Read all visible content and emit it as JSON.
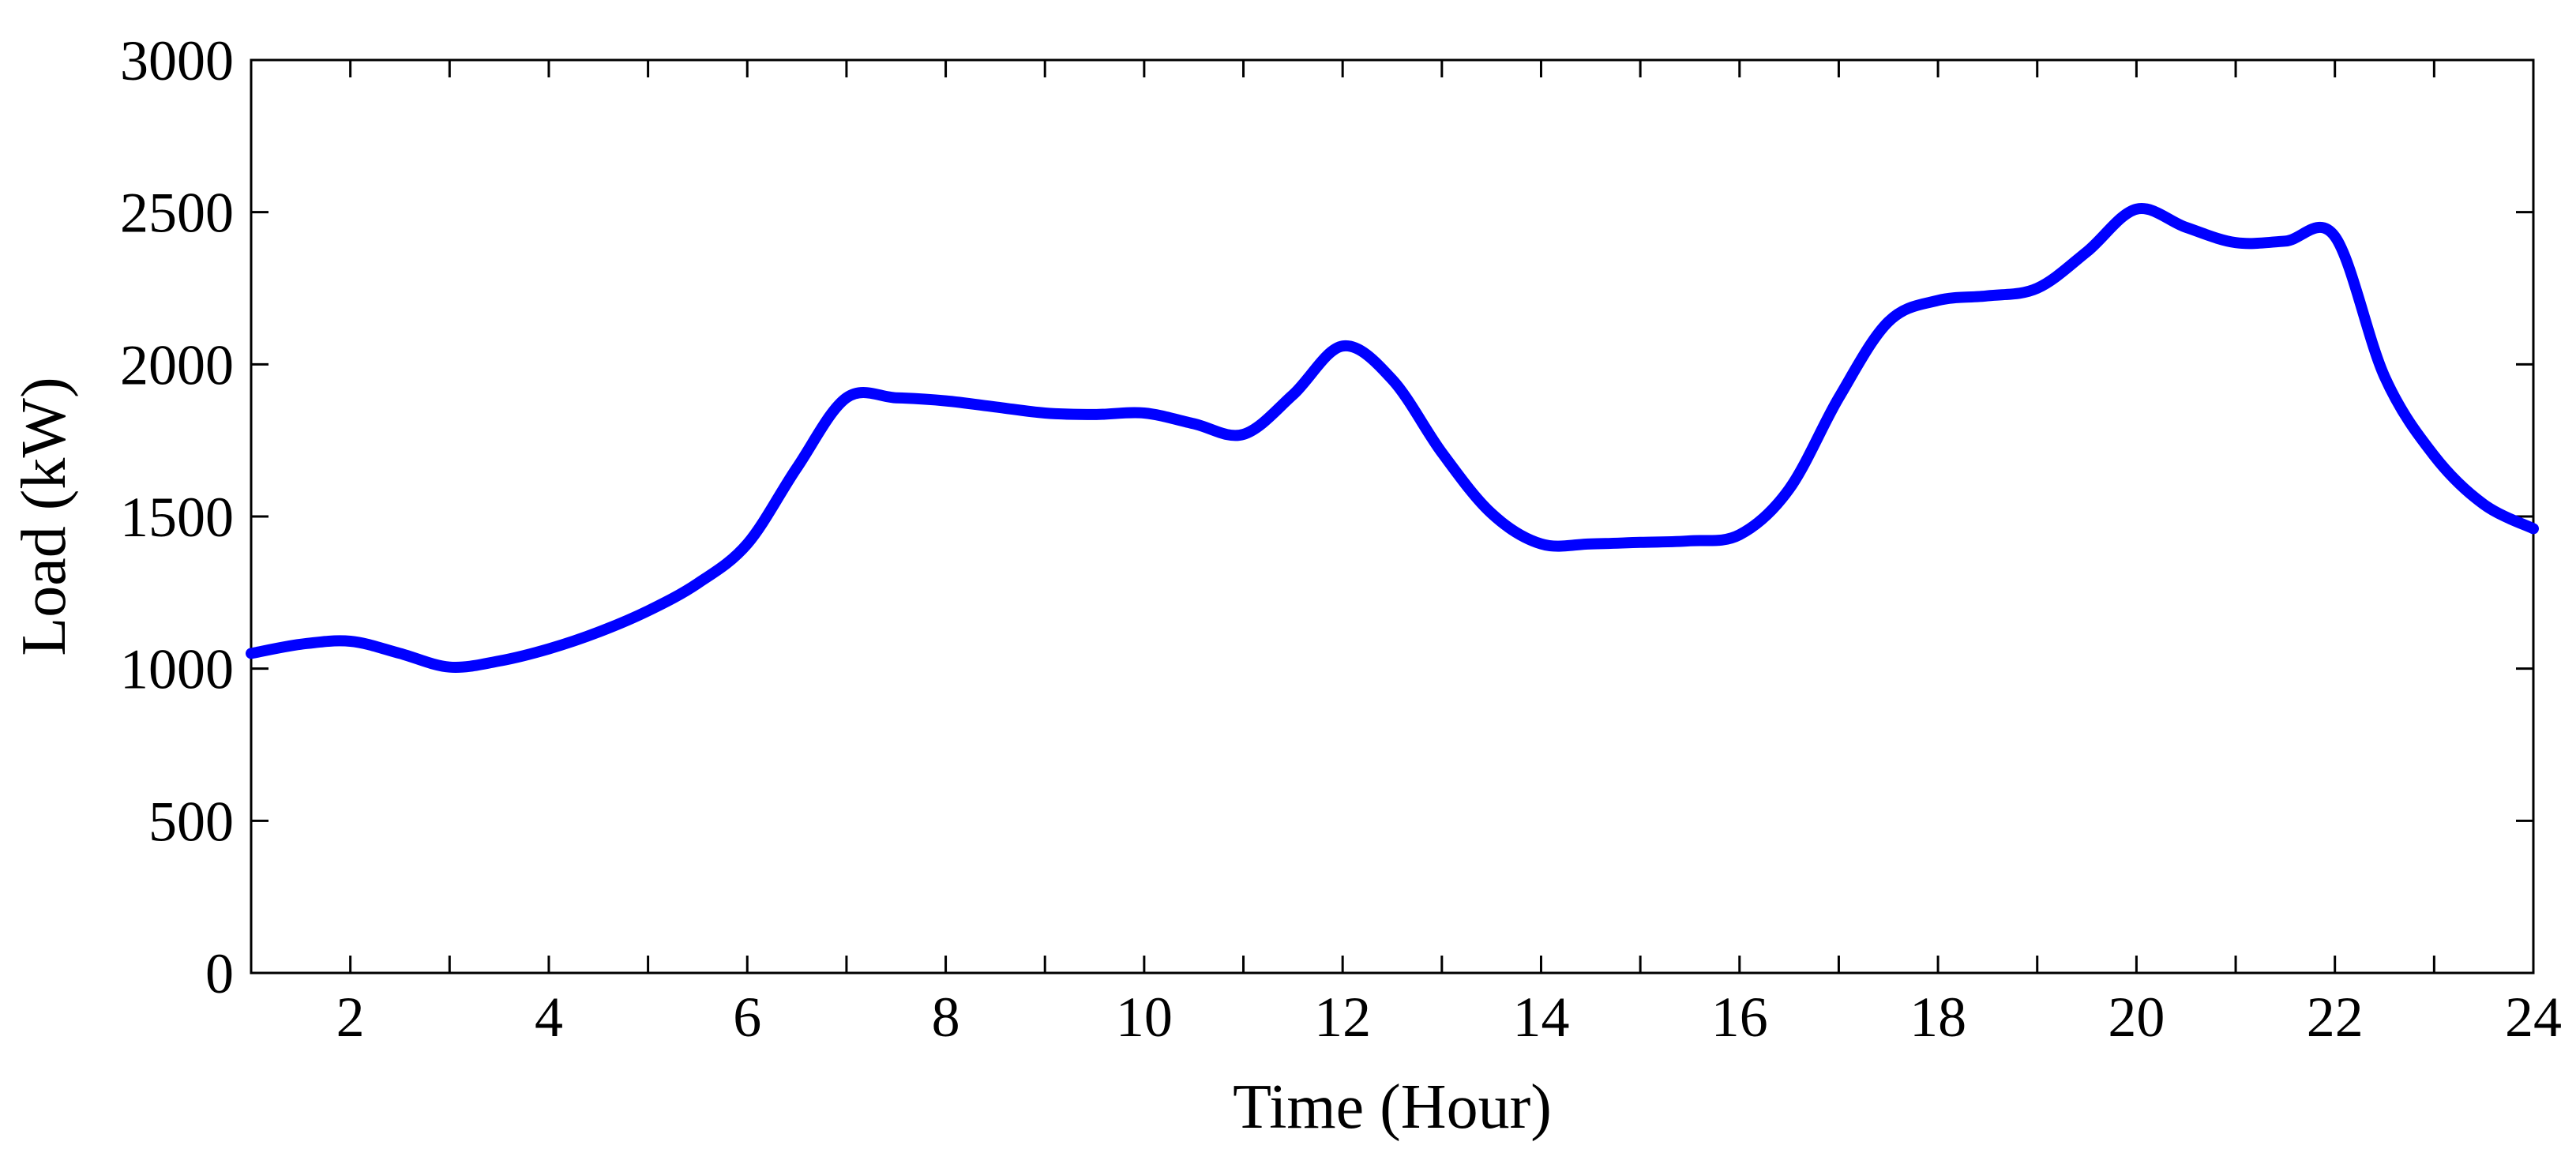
{
  "chart_data": {
    "type": "line",
    "title": "",
    "xlabel": "Time (Hour)",
    "ylabel": "Load (kW)",
    "xlim": [
      1,
      24
    ],
    "ylim": [
      0,
      3000
    ],
    "x_ticks": [
      2,
      4,
      6,
      8,
      10,
      12,
      14,
      16,
      18,
      20,
      22,
      24
    ],
    "x_minor_ticks": [
      1,
      2,
      3,
      4,
      5,
      6,
      7,
      8,
      9,
      10,
      11,
      12,
      13,
      14,
      15,
      16,
      17,
      18,
      19,
      20,
      21,
      22,
      23,
      24
    ],
    "y_ticks": [
      0,
      500,
      1000,
      1500,
      2000,
      2500,
      3000
    ],
    "grid": false,
    "legend": "none",
    "line_color": "#0000ff",
    "series": [
      {
        "x": [
          1,
          1.5,
          2,
          2.5,
          3,
          3.5,
          4,
          4.5,
          5,
          5.5,
          6,
          6.5,
          7,
          7.5,
          8,
          8.5,
          9,
          9.5,
          10,
          10.5,
          11,
          11.5,
          12,
          12.5,
          13,
          13.5,
          14,
          14.5,
          15,
          15.5,
          16,
          16.5,
          17,
          17.5,
          18,
          18.5,
          19,
          19.5,
          20,
          20.5,
          21,
          21.5,
          22,
          22.5,
          23,
          23.5,
          24
        ],
        "values": [
          1050,
          1080,
          1090,
          1050,
          1005,
          1025,
          1065,
          1120,
          1190,
          1280,
          1410,
          1660,
          1890,
          1890,
          1880,
          1860,
          1840,
          1835,
          1840,
          1805,
          1770,
          1900,
          2060,
          1950,
          1710,
          1510,
          1410,
          1410,
          1415,
          1420,
          1440,
          1590,
          1890,
          2140,
          2210,
          2225,
          2250,
          2370,
          2510,
          2450,
          2400,
          2405,
          2420,
          1960,
          1700,
          1540,
          1460
        ]
      }
    ]
  }
}
